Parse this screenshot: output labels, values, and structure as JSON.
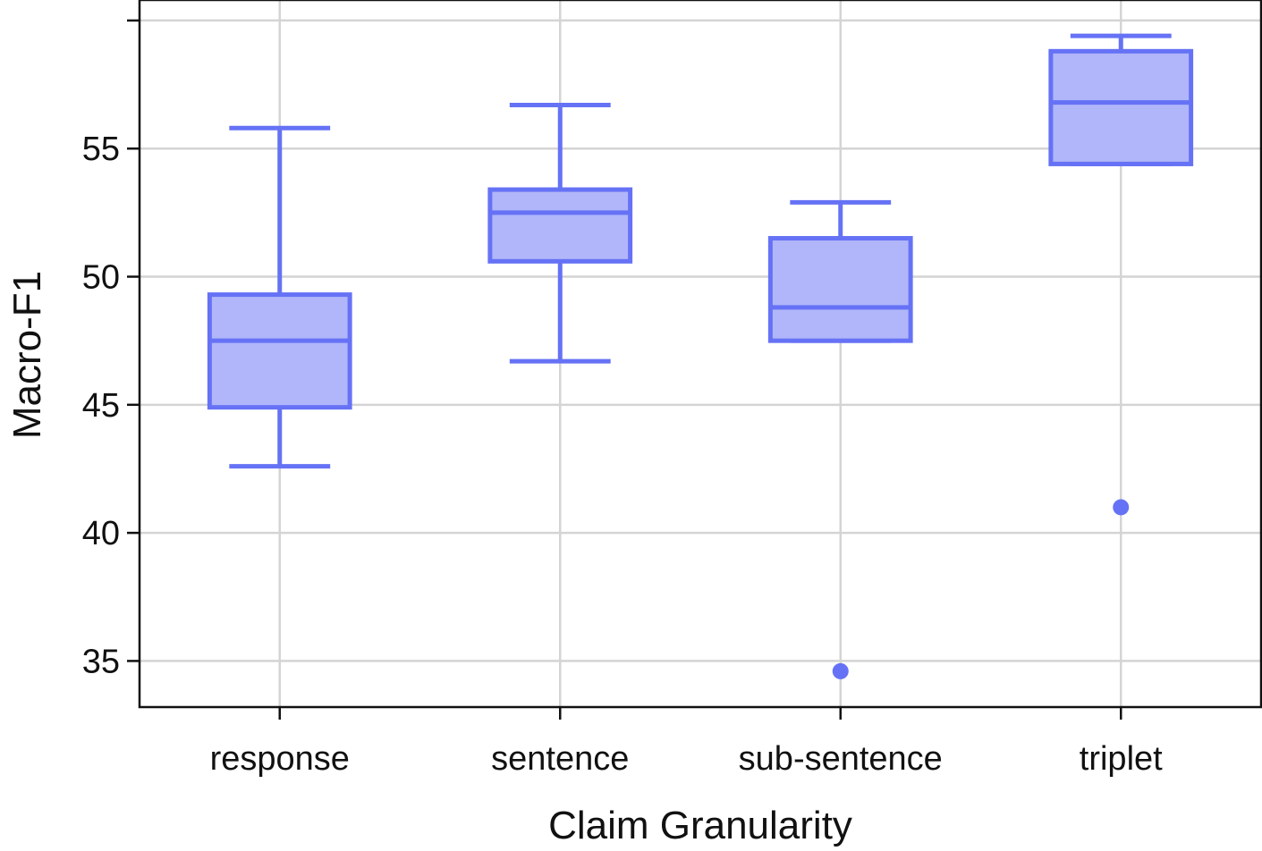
{
  "chart_data": {
    "type": "box",
    "xlabel": "Claim Granularity",
    "ylabel": "Macro-F1",
    "ylim": [
      33.2,
      60.8
    ],
    "yticks": [
      35,
      40,
      45,
      50,
      55,
      60
    ],
    "ytick_labels": [
      "35",
      "40",
      "45",
      "50",
      "55",
      ""
    ],
    "grid": true,
    "legend": "none",
    "colors": {
      "stroke": "#6672f5",
      "fill": "#b0b6f9"
    },
    "categories": [
      "response",
      "sentence",
      "sub-sentence",
      "triplet"
    ],
    "boxes": [
      {
        "category": "response",
        "whisker_low": 42.6,
        "q1": 44.9,
        "median": 47.5,
        "q3": 49.3,
        "whisker_high": 55.8,
        "outliers": []
      },
      {
        "category": "sentence",
        "whisker_low": 46.7,
        "q1": 50.6,
        "median": 52.5,
        "q3": 53.4,
        "whisker_high": 56.7,
        "outliers": []
      },
      {
        "category": "sub-sentence",
        "whisker_low": 47.5,
        "q1": 47.5,
        "median": 48.8,
        "q3": 51.5,
        "whisker_high": 52.9,
        "outliers": [
          34.6
        ]
      },
      {
        "category": "triplet",
        "whisker_low": 54.4,
        "q1": 54.4,
        "median": 56.8,
        "q3": 58.8,
        "whisker_high": 59.4,
        "outliers": [
          41.0
        ]
      }
    ]
  }
}
